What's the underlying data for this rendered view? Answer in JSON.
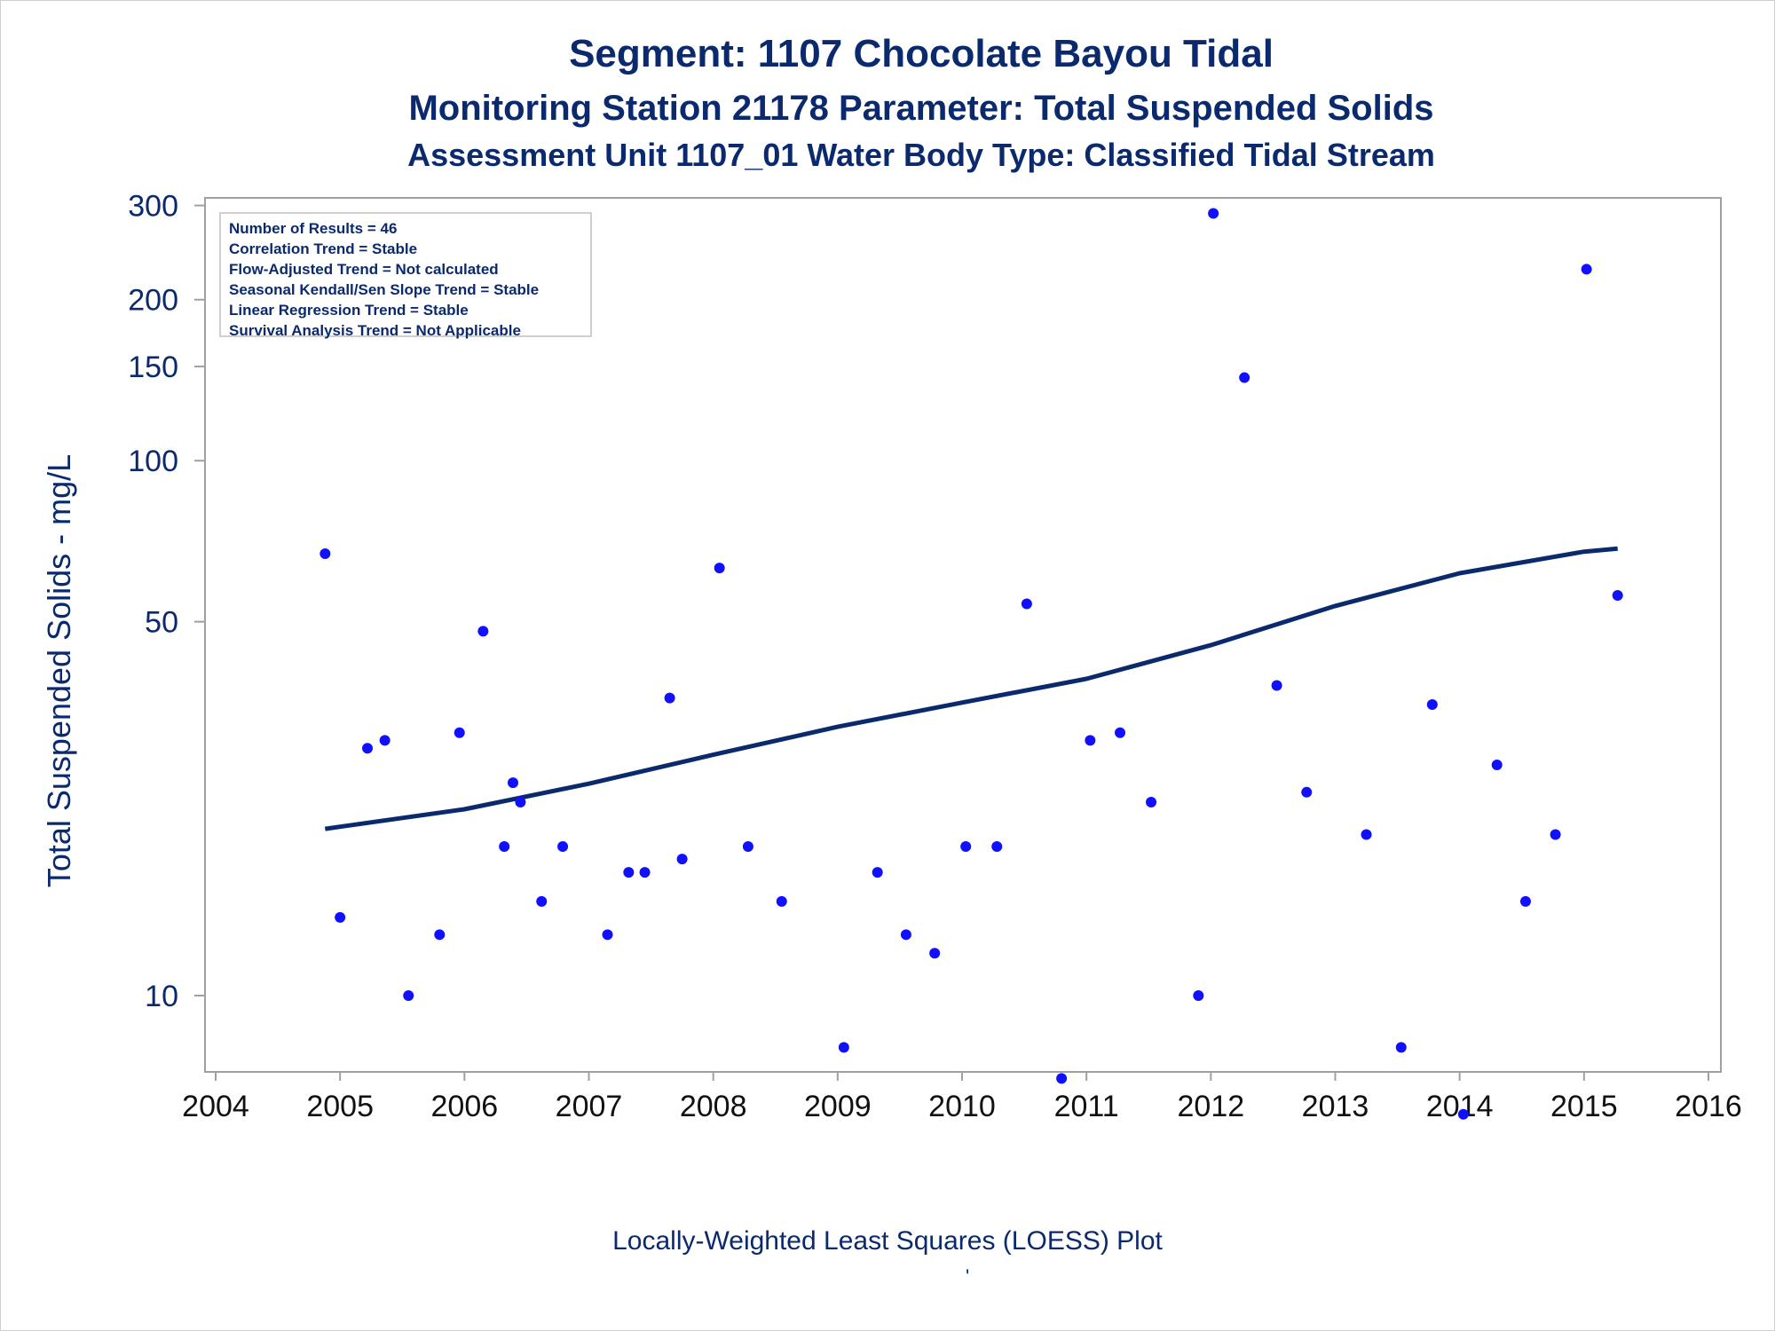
{
  "titles": {
    "line1": "Segment: 1107  Chocolate Bayou Tidal",
    "line2": "Monitoring Station 21178 Parameter: Total Suspended Solids",
    "line3": "Assessment Unit 1107_01   Water Body Type: Classified Tidal Stream"
  },
  "stats_box": [
    "Number of Results = 46",
    "Correlation Trend = Stable",
    "Flow-Adjusted Trend = Not calculated",
    "Seasonal Kendall/Sen Slope Trend = Stable",
    "Linear Regression Trend = Stable",
    "Survival Analysis Trend = Not Applicable"
  ],
  "footer": {
    "caption": "Locally-Weighted Least Squares (LOESS) Plot",
    "mark": "'"
  },
  "colors": {
    "text": "#0b2a6e",
    "points": "#1010ff",
    "loess": "#0b2a6e",
    "frame": "#a0a0a0"
  },
  "chart_data": {
    "type": "scatter",
    "ylabel": "Total Suspended Solids - mg/L",
    "yscale": "log",
    "xlim": [
      2004,
      2016
    ],
    "ylim": [
      7.2,
      310
    ],
    "xticks": [
      2004,
      2005,
      2006,
      2007,
      2008,
      2009,
      2010,
      2011,
      2012,
      2013,
      2014,
      2015,
      2016
    ],
    "yticks": [
      10,
      50,
      100,
      150,
      200,
      300
    ],
    "grid": false,
    "points": [
      [
        2004.88,
        67
      ],
      [
        2005.0,
        14
      ],
      [
        2005.22,
        29
      ],
      [
        2005.36,
        30
      ],
      [
        2005.55,
        10
      ],
      [
        2005.8,
        13
      ],
      [
        2005.96,
        31
      ],
      [
        2006.15,
        48
      ],
      [
        2006.32,
        19
      ],
      [
        2006.39,
        25
      ],
      [
        2006.45,
        23
      ],
      [
        2006.62,
        15
      ],
      [
        2006.79,
        19
      ],
      [
        2007.15,
        13
      ],
      [
        2007.32,
        17
      ],
      [
        2007.45,
        17
      ],
      [
        2007.65,
        36
      ],
      [
        2007.75,
        18
      ],
      [
        2008.05,
        63
      ],
      [
        2008.28,
        19
      ],
      [
        2008.55,
        15
      ],
      [
        2009.05,
        8
      ],
      [
        2009.32,
        17
      ],
      [
        2009.55,
        13
      ],
      [
        2009.78,
        12
      ],
      [
        2010.03,
        19
      ],
      [
        2010.28,
        19
      ],
      [
        2010.52,
        54
      ],
      [
        2010.8,
        7
      ],
      [
        2011.03,
        30
      ],
      [
        2011.27,
        31
      ],
      [
        2011.52,
        23
      ],
      [
        2011.9,
        10
      ],
      [
        2012.02,
        290
      ],
      [
        2012.27,
        143
      ],
      [
        2012.53,
        38
      ],
      [
        2012.77,
        24
      ],
      [
        2013.25,
        20
      ],
      [
        2013.53,
        8
      ],
      [
        2013.78,
        35
      ],
      [
        2014.03,
        6
      ],
      [
        2014.3,
        27
      ],
      [
        2014.53,
        15
      ],
      [
        2014.77,
        20
      ],
      [
        2015.02,
        228
      ],
      [
        2015.27,
        56
      ]
    ],
    "series": [
      {
        "type": "line",
        "x": [
          2004.88,
          2006.0,
          2007.0,
          2008.0,
          2009.0,
          2010.0,
          2011.0,
          2012.0,
          2013.0,
          2014.0,
          2015.0,
          2015.27
        ],
        "values": [
          20.5,
          22.3,
          24.9,
          28.2,
          31.8,
          35.3,
          39.1,
          45.2,
          53.5,
          61.6,
          67.6,
          68.5
        ]
      }
    ]
  }
}
